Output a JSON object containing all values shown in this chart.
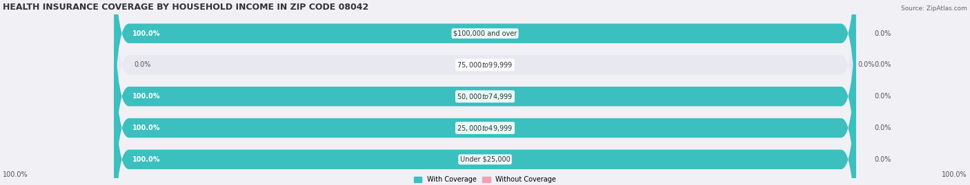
{
  "title": "HEALTH INSURANCE COVERAGE BY HOUSEHOLD INCOME IN ZIP CODE 08042",
  "source": "Source: ZipAtlas.com",
  "categories": [
    "Under $25,000",
    "$25,000 to $49,999",
    "$50,000 to $74,999",
    "$75,000 to $99,999",
    "$100,000 and over"
  ],
  "with_coverage": [
    100.0,
    100.0,
    100.0,
    0.0,
    100.0
  ],
  "without_coverage": [
    0.0,
    0.0,
    0.0,
    0.0,
    0.0
  ],
  "color_with": "#3bbfbf",
  "color_without": "#f4a0b0",
  "bg_color": "#f0f0f5",
  "bar_bg": "#e8e8f0",
  "title_fontsize": 9,
  "label_fontsize": 7,
  "bar_height": 0.62,
  "ylim_bottom": -0.5,
  "ylim_top": 4.5,
  "xlim": [
    -100,
    100
  ]
}
